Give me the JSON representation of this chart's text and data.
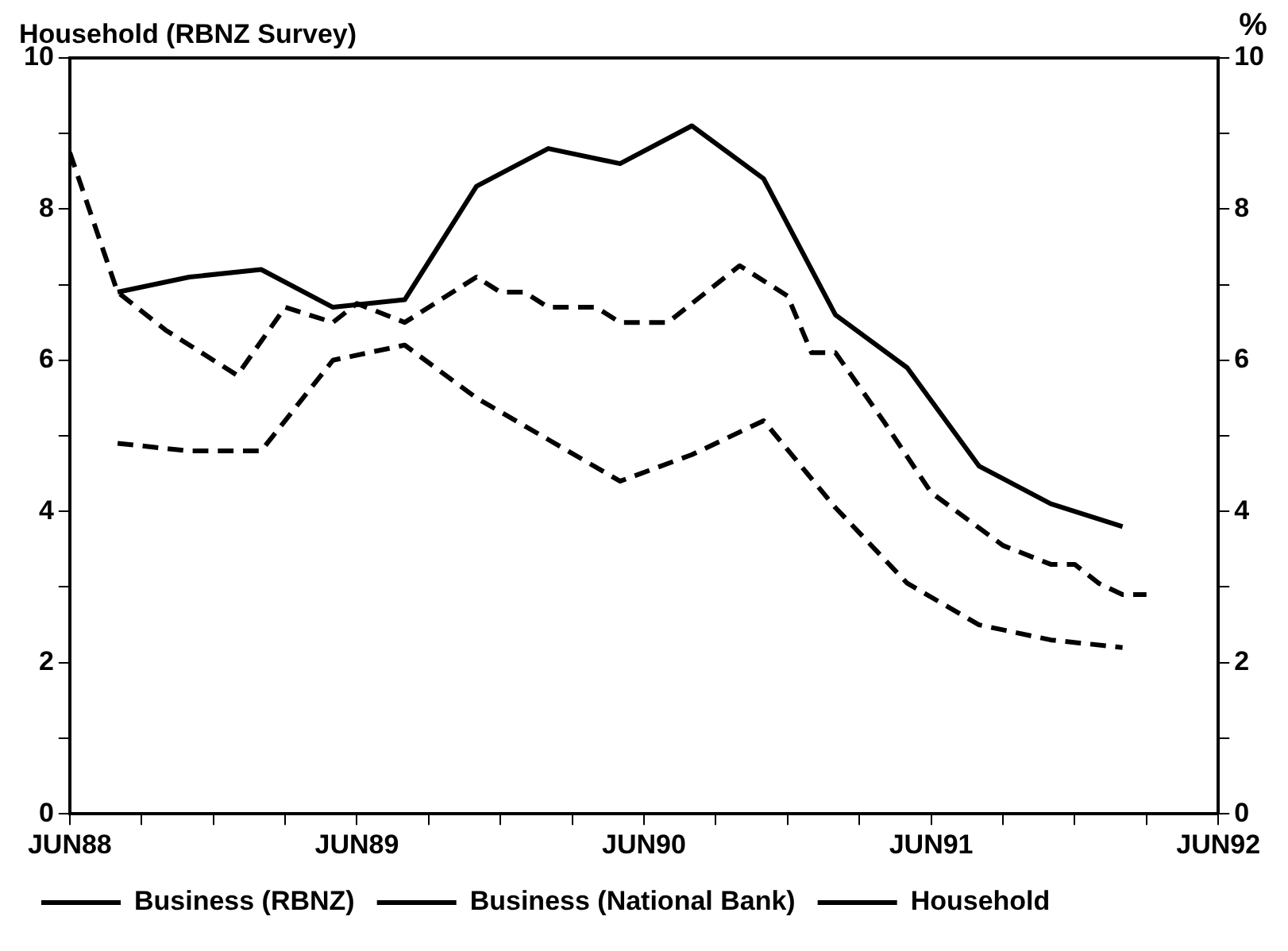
{
  "chart_data": {
    "type": "line",
    "title": "Household (RBNZ Survey)",
    "y2label": "%",
    "xlim": [
      "1988-06",
      "1992-06"
    ],
    "xticks": [
      {
        "value": "1988-06",
        "label": "JUN88"
      },
      {
        "value": "1988-09",
        "label": null
      },
      {
        "value": "1988-12",
        "label": null
      },
      {
        "value": "1989-03",
        "label": null
      },
      {
        "value": "1989-06",
        "label": "JUN89"
      },
      {
        "value": "1989-09",
        "label": null
      },
      {
        "value": "1989-12",
        "label": null
      },
      {
        "value": "1990-03",
        "label": null
      },
      {
        "value": "1990-06",
        "label": "JUN90"
      },
      {
        "value": "1990-09",
        "label": null
      },
      {
        "value": "1990-12",
        "label": null
      },
      {
        "value": "1991-03",
        "label": null
      },
      {
        "value": "1991-06",
        "label": "JUN91"
      },
      {
        "value": "1991-09",
        "label": null
      },
      {
        "value": "1991-12",
        "label": null
      },
      {
        "value": "1992-03",
        "label": null
      },
      {
        "value": "1992-06",
        "label": "JUN92"
      }
    ],
    "ylim": [
      0,
      10
    ],
    "yticks": [
      0,
      {
        "value": 1,
        "label": null
      },
      2,
      {
        "value": 3,
        "label": null
      },
      4,
      {
        "value": 5,
        "label": null
      },
      6,
      {
        "value": 7,
        "label": null
      },
      8,
      {
        "value": 9,
        "label": null
      },
      10
    ],
    "y2lim": [
      0,
      10
    ],
    "y2ticks": [
      0,
      {
        "value": 1,
        "label": null
      },
      2,
      {
        "value": 3,
        "label": null
      },
      4,
      {
        "value": 5,
        "label": null
      },
      6,
      {
        "value": 7,
        "label": null
      },
      8,
      {
        "value": 9,
        "label": null
      },
      10
    ],
    "grid": false,
    "legend": "bottom",
    "marker": "none",
    "series": [
      {
        "name": "Business (RBNZ)",
        "color": "#000000",
        "line_style": "dashed",
        "x": [
          "1988-08",
          "1988-11",
          "1989-02",
          "1989-05",
          "1989-08",
          "1989-11",
          "1990-02",
          "1990-05",
          "1990-08",
          "1990-11",
          "1991-02",
          "1991-05",
          "1991-08",
          "1991-11",
          "1992-02"
        ],
        "values": [
          4.9,
          4.8,
          4.8,
          6.0,
          6.2,
          5.5,
          4.95,
          4.4,
          4.75,
          5.2,
          4.05,
          3.05,
          2.5,
          2.3,
          2.2
        ]
      },
      {
        "name": "Business (National Bank)",
        "color": "#000000",
        "line_style": "dashed",
        "x": [
          "1988-06",
          "1988-08",
          "1988-10",
          "1989-01",
          "1989-03",
          "1989-05",
          "1989-06",
          "1989-08",
          "1989-11",
          "1989-12",
          "1990-01",
          "1990-02",
          "1990-04",
          "1990-05",
          "1990-07",
          "1990-10",
          "1990-12",
          "1991-01",
          "1991-02",
          "1991-04",
          "1991-06",
          "1991-09",
          "1991-11",
          "1991-12",
          "1992-01",
          "1992-02",
          "1992-03"
        ],
        "values": [
          8.75,
          6.9,
          6.4,
          5.8,
          6.7,
          6.5,
          6.75,
          6.5,
          7.1,
          6.9,
          6.9,
          6.7,
          6.7,
          6.5,
          6.5,
          7.25,
          6.85,
          6.1,
          6.1,
          5.2,
          4.25,
          3.55,
          3.3,
          3.3,
          3.05,
          2.9,
          2.9
        ]
      },
      {
        "name": "Household",
        "color": "#000000",
        "line_style": "solid",
        "x": [
          "1988-08",
          "1988-11",
          "1989-02",
          "1989-05",
          "1989-08",
          "1989-11",
          "1990-02",
          "1990-05",
          "1990-08",
          "1990-11",
          "1991-02",
          "1991-05",
          "1991-08",
          "1991-11",
          "1992-02"
        ],
        "values": [
          6.9,
          7.1,
          7.2,
          6.7,
          6.8,
          8.3,
          8.8,
          8.6,
          9.1,
          8.4,
          6.6,
          5.9,
          4.6,
          4.1,
          3.8
        ]
      }
    ]
  }
}
